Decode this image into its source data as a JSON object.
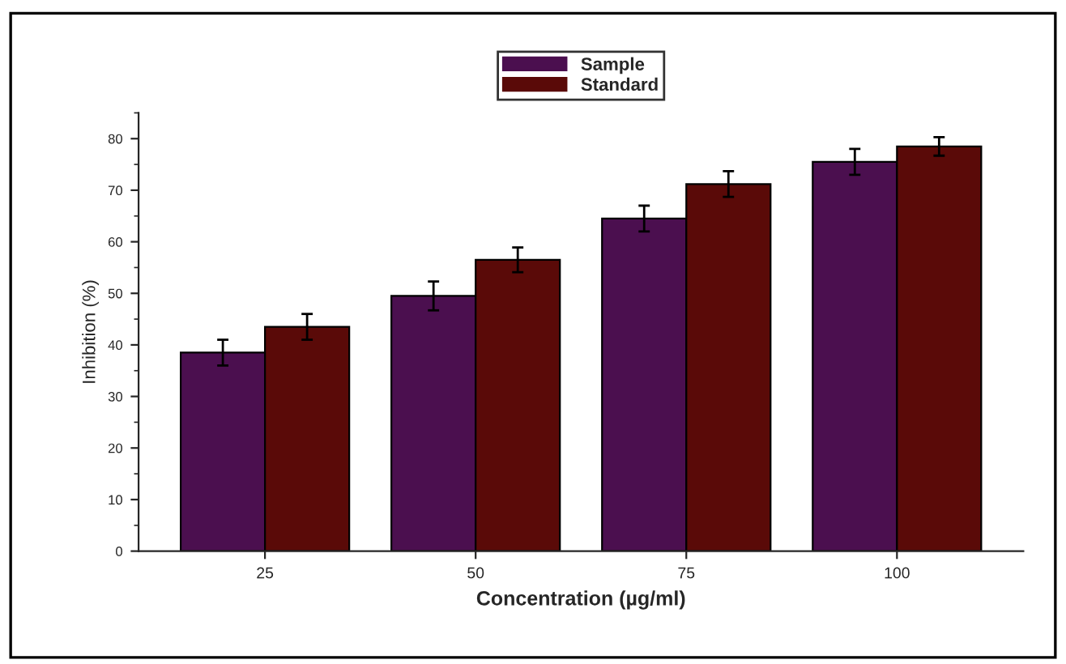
{
  "chart_data": {
    "type": "bar",
    "xlabel": "Concentration (µg/ml)",
    "ylabel": "Inhibition (%)",
    "categories": [
      "25",
      "50",
      "75",
      "100"
    ],
    "series": [
      {
        "name": "Sample",
        "color": "#4b0f4f",
        "values": [
          38.5,
          49.5,
          64.5,
          75.5
        ],
        "errors": [
          2.5,
          2.8,
          2.5,
          2.5
        ]
      },
      {
        "name": "Standard",
        "color": "#5a0a08",
        "values": [
          43.5,
          56.5,
          71.2,
          78.5
        ],
        "errors": [
          2.5,
          2.4,
          2.5,
          1.8
        ]
      }
    ],
    "ylim": [
      0,
      85
    ],
    "yticks": [
      0,
      10,
      20,
      30,
      40,
      50,
      60,
      70,
      80
    ],
    "grid": false,
    "legend": "top"
  }
}
